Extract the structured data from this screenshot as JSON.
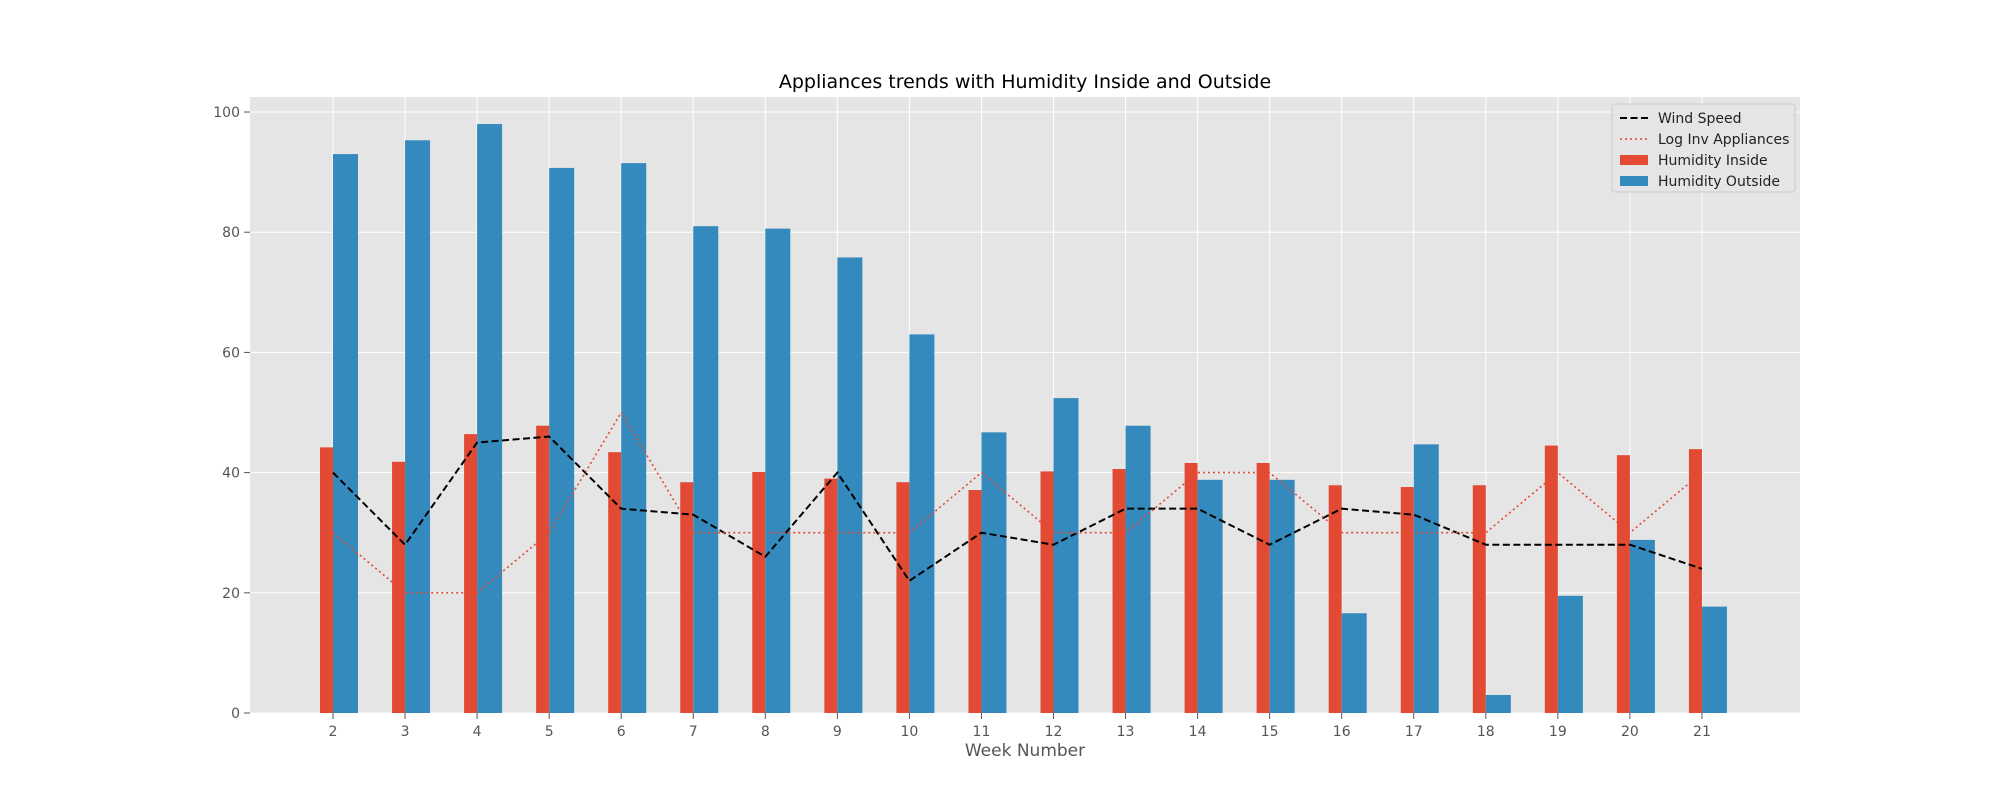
{
  "chart_data": {
    "type": "bar",
    "title": "Appliances trends with Humidity Inside and Outside",
    "xlabel": "Week Number",
    "ylabel": "",
    "categories": [
      "2",
      "3",
      "4",
      "5",
      "6",
      "7",
      "8",
      "9",
      "10",
      "11",
      "12",
      "13",
      "14",
      "15",
      "16",
      "17",
      "18",
      "19",
      "20",
      "21"
    ],
    "ylim": [
      0,
      102.5
    ],
    "yticks": [
      0,
      20,
      40,
      60,
      80,
      100
    ],
    "grid": true,
    "legend_position": "top-right",
    "series": [
      {
        "name": "Wind Speed",
        "kind": "line",
        "line_style": "dashed",
        "color": "#000000",
        "values": [
          40,
          28,
          45,
          46,
          34,
          33,
          26,
          40,
          22,
          30,
          28,
          34,
          34,
          28,
          34,
          33,
          28,
          28,
          28,
          24
        ]
      },
      {
        "name": "Log Inv Appliances",
        "kind": "line",
        "line_style": "dotted",
        "color": "#e24a33",
        "values": [
          30,
          20,
          20,
          30,
          50,
          30,
          30,
          30,
          30,
          40,
          30,
          30,
          40,
          40,
          30,
          30,
          30,
          40,
          30,
          40
        ]
      },
      {
        "name": "Humidity Inside",
        "kind": "bar",
        "color": "#e24a33",
        "values": [
          44.2,
          41.8,
          46.4,
          47.8,
          43.4,
          38.4,
          40.1,
          39.0,
          38.4,
          37.1,
          40.2,
          40.6,
          41.6,
          41.6,
          37.9,
          37.6,
          37.9,
          44.5,
          42.9,
          43.9
        ]
      },
      {
        "name": "Humidity Outside",
        "kind": "bar",
        "color": "#348abd",
        "values": [
          93.0,
          95.3,
          98.0,
          90.7,
          91.5,
          81.0,
          80.6,
          75.8,
          63.0,
          46.7,
          52.4,
          47.8,
          38.8,
          38.8,
          16.6,
          44.7,
          3.0,
          19.5,
          28.8,
          17.7
        ]
      }
    ]
  }
}
